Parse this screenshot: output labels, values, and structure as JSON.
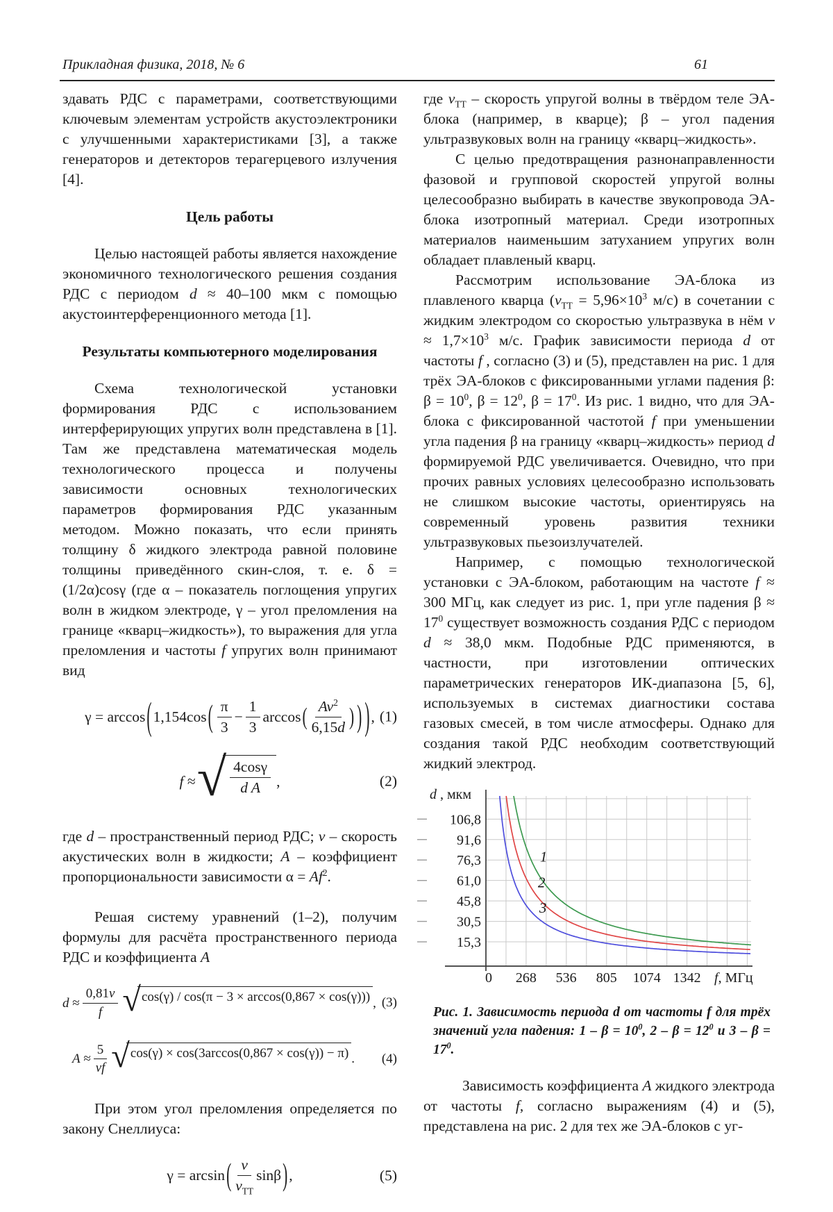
{
  "page": {
    "journal": "Прикладная физика, 2018, № 6",
    "page_number": "61"
  },
  "left": {
    "intro": [
      "здавать РДС с параметрами, соответствующими ключевым элементам устройств акустоэлектроники с улучшенными характеристиками [3], а также генераторов и детекторов терагерцевого излучения [4]."
    ],
    "goal_heading": "Цель работы",
    "goal": [
      "Целью настоящей работы является нахождение экономичного технологического решения создания РДС с периодом ",
      {
        "t": "d",
        "s": "i"
      },
      " ≈ 40–100 мкм с помощью акустоинтерференционного метода [1]."
    ],
    "results_heading": "Результаты компьютерного моделирования",
    "scheme": [
      "Схема технологической установки формирования РДС с использованием интерферирующих упругих волн представлена в [1]. Там же представлена математическая модель технологического процесса и получены зависимости основных технологических параметров формирования РДС указанным методом. Можно показать, что если принять толщину δ жидкого электрода равной половине толщины приведённого скин-слоя, т. е. δ = (1/2α)cosγ (где α – показатель поглощения упругих волн в жидком электроде, γ – угол преломления на границе «кварц–жидкость»), то выражения для угла преломления и частоты ",
      {
        "t": "f",
        "s": "i"
      },
      " упругих волн принимают вид"
    ],
    "eq1": {
      "lhs": "γ = arccos",
      "lp": "(",
      "rp": ")",
      "f1": "1,154cos",
      "pi": "π",
      "three": "3",
      "minus": "−",
      "one": "1",
      "three2": "3",
      "arccos2": "arccos",
      "num_seg": [
        {
          "t": "Av",
          "s": "i"
        },
        {
          "t": "2",
          "s": "sup"
        }
      ],
      "den_seg": [
        "6,15",
        {
          "t": "d",
          "s": "i"
        }
      ],
      "comma": ",",
      "label": "(1)"
    },
    "eq2": {
      "lhs_seg": [
        {
          "t": "f",
          "s": "i"
        },
        " ≈"
      ],
      "num": "4cosγ",
      "den_seg": [
        {
          "t": "d A",
          "s": "i"
        }
      ],
      "comma": ",",
      "label": "(2)"
    },
    "where_terms": [
      "где ",
      {
        "t": "d",
        "s": "i"
      },
      " – пространственный период РДС; ",
      {
        "t": "v",
        "s": "i"
      },
      " – скорость акустических волн в жидкости; ",
      {
        "t": "A",
        "s": "i"
      },
      " – коэффициент пропорциональности зависимости α = ",
      {
        "t": "Af",
        "s": "i"
      },
      {
        "t": "2",
        "s": "sup"
      },
      "."
    ],
    "solve": [
      "Решая систему уравнений (1–2), получим формулы для расчёта пространственного периода РДС и коэффициента ",
      {
        "t": "A",
        "s": "i"
      }
    ],
    "eq3": {
      "lhs_seg": [
        {
          "t": "d",
          "s": "i"
        },
        " ≈"
      ],
      "fnum_seg": [
        "0,81",
        {
          "t": "v",
          "s": "i"
        }
      ],
      "fden_seg": [
        {
          "t": "f",
          "s": "i"
        }
      ],
      "radicand": "cos(γ) / cos(π − 3 × arccos(0,867 × cos(γ)))",
      "comma": ",",
      "label": "(3)"
    },
    "eq4": {
      "lhs_seg": [
        {
          "t": "A",
          "s": "i"
        },
        " ≈"
      ],
      "fnum_seg": [
        "5"
      ],
      "fden_seg": [
        {
          "t": "vf",
          "s": "i"
        }
      ],
      "radicand": "cos(γ) × cos(3arccos(0,867 × cos(γ)) − π)",
      "period": ".",
      "label": "(4)"
    },
    "snell": [
      "При этом угол преломления определяется по закону Снеллиуса:"
    ],
    "eq5": {
      "lhs": "γ = arcsin",
      "lp": "(",
      "rp": ")",
      "fnum_seg": [
        {
          "t": "v",
          "s": "i"
        }
      ],
      "fden_seg": [
        {
          "t": "v",
          "s": "i"
        },
        {
          "t": "ТТ",
          "s": "sub"
        }
      ],
      "tail": "sinβ",
      "comma": ",",
      "label": "(5)"
    }
  },
  "right": {
    "where_vtt": [
      "где ",
      {
        "t": "v",
        "s": "i"
      },
      {
        "t": "ТТ",
        "s": "sub"
      },
      " – скорость упругой волны в твёрдом теле ЭА-блока (например, в кварце); β – угол падения ультразвуковых волн на границу «кварц–жидкость»."
    ],
    "isotropic": [
      "С целью предотвращения разнонаправленности фазовой и групповой скоростей упругой волны целесообразно выбирать в качестве звукопровода ЭА-блока изотропный материал. Среди изотропных материалов наименьшим затуханием упругих волн обладает плавленый кварц."
    ],
    "consider": [
      "Рассмотрим использование ЭА-блока из плавленого кварца (",
      {
        "t": "v",
        "s": "i"
      },
      {
        "t": "ТТ",
        "s": "sub"
      },
      " = 5,96×10",
      {
        "t": "3",
        "s": "sup"
      },
      " м/с) в сочетании с жидким электродом со скоростью ультразвука в нём ",
      {
        "t": "v",
        "s": "i"
      },
      " ≈ 1,7×10",
      {
        "t": "3",
        "s": "sup"
      },
      " м/с. График зависимости периода ",
      {
        "t": "d",
        "s": "i"
      },
      " от частоты ",
      {
        "t": "f",
        "s": "i"
      },
      " , согласно (3) и (5), представлен на рис. 1 для трёх ЭА-блоков с фиксированными углами падения β: β = 10",
      {
        "t": "0",
        "s": "sup"
      },
      ", β = 12",
      {
        "t": "0",
        "s": "sup"
      },
      ", β = 17",
      {
        "t": "0",
        "s": "sup"
      },
      ". Из рис. 1 видно, что для ЭА-блока с фиксированной частотой ",
      {
        "t": "f",
        "s": "i"
      },
      " при уменьшении угла падения β на границу «кварц–жидкость» период ",
      {
        "t": "d",
        "s": "i"
      },
      " формируемой РДС увеличивается. Очевидно, что при прочих равных условиях целесообразно использовать не слишком высокие частоты, ориентируясь на современный уровень развития техники ультразвуковых пьезоизлучателей."
    ],
    "example": [
      "Например, с помощью технологической установки с ЭА-блоком, работающим на частоте ",
      {
        "t": "f",
        "s": "i"
      },
      " ≈ 300 МГц, как следует из рис. 1, при угле падения β ≈ 17",
      {
        "t": "0",
        "s": "sup"
      },
      " существует возможность создания РДС с периодом ",
      {
        "t": "d",
        "s": "i"
      },
      " ≈ 38,0 мкм. Подобные РДС применяются, в частности, при изготовлении оптических параметрических генераторов ИК-диапазона [5, 6], используемых в системах диагностики состава газовых смесей, в том числе атмосферы. Однако для создания такой РДС необходим соответствующий жидкий электрод."
    ],
    "figure_caption": [
      "Рис. 1. Зависимость периода ",
      {
        "t": "d",
        "s": "i"
      },
      " от частоты ",
      {
        "t": "f",
        "s": "i"
      },
      " для трёх значений угла падения: 1 – β = 10",
      {
        "t": "0",
        "s": "sup"
      },
      ", 2 – β = 12",
      {
        "t": "0",
        "s": "sup"
      },
      " и 3 – β = 17",
      {
        "t": "0",
        "s": "sup"
      },
      "."
    ],
    "dependence": [
      "Зависимость коэффициента ",
      {
        "t": "A",
        "s": "i"
      },
      " жидкого электрода от частоты ",
      {
        "t": "f",
        "s": "i"
      },
      ", согласно выражениям (4) и (5), представлена на рис. 2 для тех же ЭА-блоков с уг-"
    ]
  },
  "chart_data": {
    "type": "line",
    "title": "Рис. 1. Зависимость периода d от частоты f",
    "xlabel": "f, МГц",
    "xlabel_italic": "f",
    "xlabel_rest": ", МГц",
    "ylabel": "d, мкм",
    "ylabel_italic": "d",
    "ylabel_rest": " , мкм",
    "xlim": [
      0,
      1770
    ],
    "ylim": [
      0,
      124
    ],
    "grid": true,
    "grid_color": "#c9c9c9",
    "axis_color": "#3a3a3a",
    "x_grid_step": 134.2,
    "y_grid_step": 15.25,
    "x_ticks": [
      {
        "value": 0,
        "label": "0"
      },
      {
        "value": 268,
        "label": "268"
      },
      {
        "value": 536,
        "label": "536"
      },
      {
        "value": 805,
        "label": "805"
      },
      {
        "value": 1074,
        "label": "1074"
      },
      {
        "value": 1342,
        "label": "1342"
      }
    ],
    "y_ticks": [
      {
        "value": 106.75,
        "label": "106,8"
      },
      {
        "value": 91.5,
        "label": "91,6"
      },
      {
        "value": 76.25,
        "label": "76,3"
      },
      {
        "value": 61.0,
        "label": "61,0"
      },
      {
        "value": 45.75,
        "label": "45,8"
      },
      {
        "value": 30.5,
        "label": "30,5"
      },
      {
        "value": 15.25,
        "label": "15,3"
      }
    ],
    "model": "d = C / f (hyperbola, from eq. 3 and 5)",
    "series": [
      {
        "name": "1",
        "beta": "β = 10°",
        "color": "#3d9a50",
        "C": 23000,
        "points": [
          {
            "f": 200,
            "d": 115.0
          },
          {
            "f": 300,
            "d": 76.7
          },
          {
            "f": 536,
            "d": 42.9
          },
          {
            "f": 805,
            "d": 28.6
          },
          {
            "f": 1074,
            "d": 21.4
          },
          {
            "f": 1342,
            "d": 17.1
          },
          {
            "f": 1700,
            "d": 13.5
          }
        ]
      },
      {
        "name": "2",
        "beta": "β = 12°",
        "color": "#e04545",
        "C": 16800,
        "points": [
          {
            "f": 200,
            "d": 84.0
          },
          {
            "f": 300,
            "d": 56.0
          },
          {
            "f": 536,
            "d": 31.3
          },
          {
            "f": 805,
            "d": 20.9
          },
          {
            "f": 1074,
            "d": 15.6
          },
          {
            "f": 1342,
            "d": 12.5
          },
          {
            "f": 1700,
            "d": 9.9
          }
        ]
      },
      {
        "name": "3",
        "beta": "β = 17°",
        "color": "#4e4edd",
        "C": 11400,
        "points": [
          {
            "f": 200,
            "d": 57.0
          },
          {
            "f": 300,
            "d": 38.0
          },
          {
            "f": 536,
            "d": 21.3
          },
          {
            "f": 805,
            "d": 14.2
          },
          {
            "f": 1074,
            "d": 10.6
          },
          {
            "f": 1342,
            "d": 8.5
          },
          {
            "f": 1700,
            "d": 6.7
          }
        ]
      }
    ],
    "curve_labels": [
      {
        "text": "1",
        "f": 361,
        "d": 75
      },
      {
        "text": "2",
        "f": 347,
        "d": 56
      },
      {
        "text": "3",
        "f": 356,
        "d": 37
      }
    ],
    "legend_position": "none"
  }
}
